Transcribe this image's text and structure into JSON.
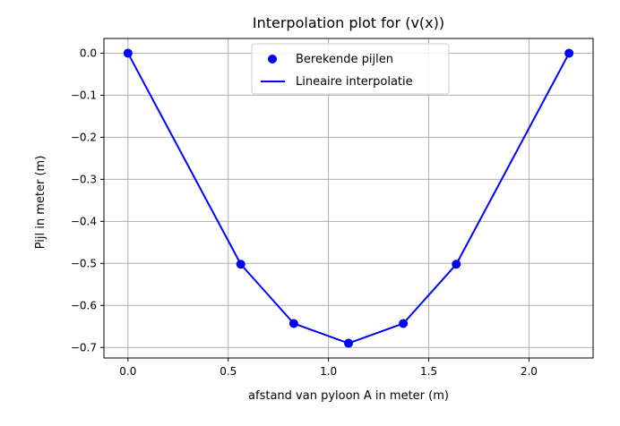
{
  "chart_data": {
    "type": "line",
    "title": "Interpolation plot for (v(x))",
    "xlabel": "afstand van pyloon A in meter (m)",
    "ylabel": "Pijl in meter (m)",
    "xlim": [
      -0.12,
      2.32
    ],
    "ylim": [
      -0.725,
      0.035
    ],
    "x_ticks": [
      0.0,
      0.5,
      1.0,
      1.5,
      2.0
    ],
    "x_tick_labels": [
      "0.0",
      "0.5",
      "1.0",
      "1.5",
      "2.0"
    ],
    "y_ticks": [
      0.0,
      -0.1,
      -0.2,
      -0.3,
      -0.4,
      -0.5,
      -0.6,
      -0.7
    ],
    "y_tick_labels": [
      "0.0",
      "−0.1",
      "−0.2",
      "−0.3",
      "−0.4",
      "−0.5",
      "−0.6",
      "−0.7"
    ],
    "grid": true,
    "legend_position": "top-center",
    "series": [
      {
        "name": "Berekende pijlen",
        "kind": "scatter",
        "color": "#0000ff",
        "x": [
          0.0,
          0.5625,
          0.8269,
          1.1,
          1.3731,
          1.6375,
          2.2
        ],
        "y": [
          0.0,
          -0.502,
          -0.643,
          -0.69,
          -0.643,
          -0.502,
          0.0
        ]
      },
      {
        "name": "Lineaire interpolatie",
        "kind": "line",
        "color": "#0000ff",
        "x": [
          0.0,
          0.5625,
          0.8269,
          1.1,
          1.3731,
          1.6375,
          2.2
        ],
        "y": [
          0.0,
          -0.502,
          -0.643,
          -0.69,
          -0.643,
          -0.502,
          0.0
        ]
      }
    ]
  }
}
